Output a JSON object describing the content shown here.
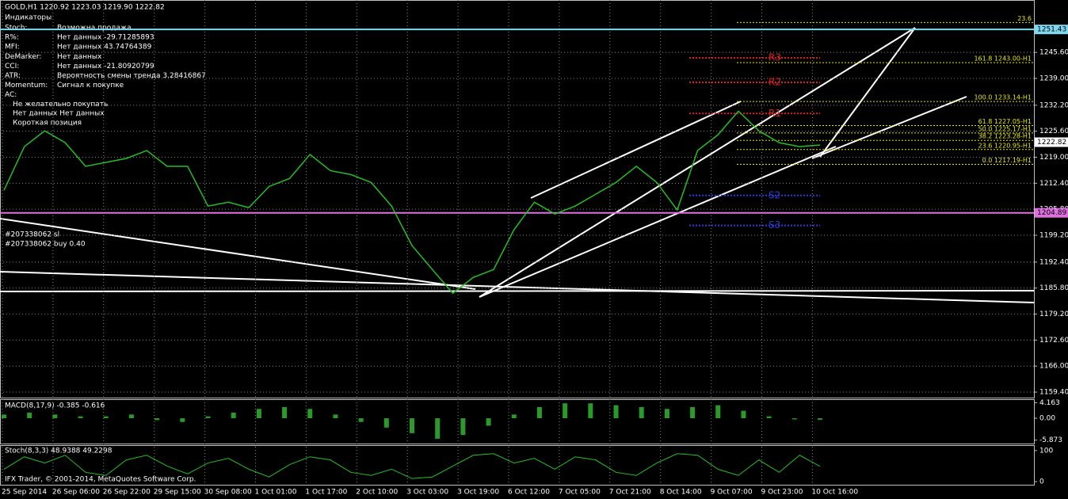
{
  "header": "GOLD,H1  1220.92 1223.03 1219.90 1222.82",
  "indicators": {
    "title": "Индикаторы",
    "rows": [
      [
        "Stoch:",
        "Возможна продажа"
      ],
      [
        "R%:",
        "Нет данных -29.71285893"
      ],
      [
        "MFI:",
        "Нет данных 43.74764389"
      ],
      [
        "DeMarker:",
        "Нет данных"
      ],
      [
        "CCI:",
        "Нет данных -21.80920799"
      ],
      [
        "ATR:",
        "Вероятность смены тренда 3.28416867"
      ],
      [
        "Momentum:",
        "Сигнал к покупке"
      ],
      [
        "AC:",
        "Не желательно покупать"
      ]
    ],
    "notes": [
      "Нет данных Нет данных",
      "Короткая позиция"
    ]
  },
  "orders": [
    "#207338062 sl",
    "#207338062 buy 0.40"
  ],
  "chart": {
    "closes": [
      1210.6,
      1221.7,
      1225.7,
      1222.7,
      1216.7,
      1217.7,
      1218.7,
      1220.7,
      1216.7,
      1216.7,
      1206.6,
      1207.6,
      1206.2,
      1211.6,
      1213.6,
      1219.7,
      1215.6,
      1214.6,
      1212.6,
      1206.6,
      1196.6,
      1190.5,
      1184.5,
      1188.5,
      1190.5,
      1200.6,
      1207.6,
      1204.6,
      1206.6,
      1209.6,
      1212.6,
      1216.7,
      1212.6,
      1205.6,
      1220.7,
      1224.7,
      1230.7,
      1225.7,
      1222.7,
      1221.7,
      1222.1
    ],
    "ylim": [
      1157.8,
      1258.9
    ],
    "yticks": [
      {
        "value": 1245.6,
        "label": "1245.60"
      },
      {
        "value": 1239.0,
        "label": "1239.00"
      },
      {
        "value": 1232.2,
        "label": "1232.20"
      },
      {
        "value": 1225.6,
        "label": "1225.60"
      },
      {
        "value": 1219.0,
        "label": "1219.00"
      },
      {
        "value": 1212.4,
        "label": "1212.40"
      },
      {
        "value": 1205.8,
        "label": "1205.80"
      },
      {
        "value": 1199.2,
        "label": "1199.20"
      },
      {
        "value": 1192.4,
        "label": "1192.40"
      },
      {
        "value": 1185.8,
        "label": "1185.80"
      },
      {
        "value": 1179.2,
        "label": "1179.20"
      },
      {
        "value": 1172.6,
        "label": "1172.60"
      },
      {
        "value": 1166.0,
        "label": "1166.00"
      },
      {
        "value": 1159.4,
        "label": "1159.40"
      }
    ],
    "xlabels": [
      "25 Sep 2014",
      "26 Sep 06:00",
      "26 Sep 22:00",
      "29 Sep 15:00",
      "30 Sep 08:00",
      "1 Oct 01:00",
      "1 Oct 17:00",
      "2 Oct 10:00",
      "3 Oct 03:00",
      "3 Oct 19:00",
      "6 Oct 12:00",
      "7 Oct 05:00",
      "7 Oct 21:00",
      "8 Oct 14:00",
      "9 Oct 07:00",
      "9 Oct 23:00",
      "10 Oct 16:00"
    ],
    "price_levels": [
      {
        "value": 1251.43,
        "color": "#7fd8f0"
      },
      {
        "value": 1204.89,
        "color": "#e070e0"
      }
    ],
    "current_price": 1222.82,
    "fibo": [
      {
        "value": 1253.2,
        "label": "23.6"
      },
      {
        "value": 1243.0,
        "label": "161.8 1243.00-H1"
      },
      {
        "value": 1233.14,
        "label": "100.0 1233.14-H1"
      },
      {
        "value": 1227.05,
        "label": "61.8 1227.05-H1"
      },
      {
        "value": 1225.17,
        "label": "50.0 1225.17-H1"
      },
      {
        "value": 1223.28,
        "label": "38.2 1223.28-H1"
      },
      {
        "value": 1220.95,
        "label": "23.6 1220.95-H1"
      },
      {
        "value": 1217.19,
        "label": "0.0 1217.19-H1"
      }
    ],
    "pivots": [
      {
        "value": 1244.2,
        "label": "R3",
        "color": "#e02020"
      },
      {
        "value": 1238.0,
        "label": "R2",
        "color": "#e02020"
      },
      {
        "value": 1230.1,
        "label": "R1",
        "color": "#e02020"
      },
      {
        "value": 1209.3,
        "label": "S2",
        "color": "#2a3fd8"
      },
      {
        "value": 1201.7,
        "label": "S3",
        "color": "#2a3fd8"
      }
    ]
  },
  "macd": {
    "label": "MACD(8,17,9) -0.385 -0.616",
    "yticks": [
      {
        "value": 4.163,
        "label": "4.163"
      },
      {
        "value": 0,
        "label": "0.00"
      },
      {
        "value": -5.873,
        "label": "-5.873"
      }
    ],
    "ylim": [
      -6.8,
      4.9
    ],
    "hist": [
      1,
      1.5,
      1,
      0.5,
      0.5,
      1,
      -0.5,
      -1,
      0.5,
      1.5,
      2.5,
      3,
      2.5,
      1,
      -1,
      -2.5,
      -4,
      -5.5,
      -4.5,
      -2,
      1,
      3,
      4,
      4,
      3.5,
      3,
      2.5,
      3,
      3.5,
      2,
      0.5,
      -0.3,
      -0.4
    ]
  },
  "stoch": {
    "label": "Stoch(8,3,3) 48.9388 49.2298",
    "yticks": [
      100,
      0
    ],
    "ylim": [
      -10,
      115
    ],
    "values": [
      40,
      80,
      60,
      85,
      30,
      20,
      70,
      85,
      50,
      25,
      60,
      75,
      40,
      15,
      55,
      80,
      70,
      30,
      20,
      40,
      10,
      15,
      50,
      85,
      90,
      60,
      75,
      40,
      80,
      70,
      30,
      20,
      60,
      90,
      85,
      40,
      20,
      70,
      30,
      85,
      49
    ]
  },
  "copyright": "IFX Trader, © 2001-2014, MetaQuotes Software Corp."
}
